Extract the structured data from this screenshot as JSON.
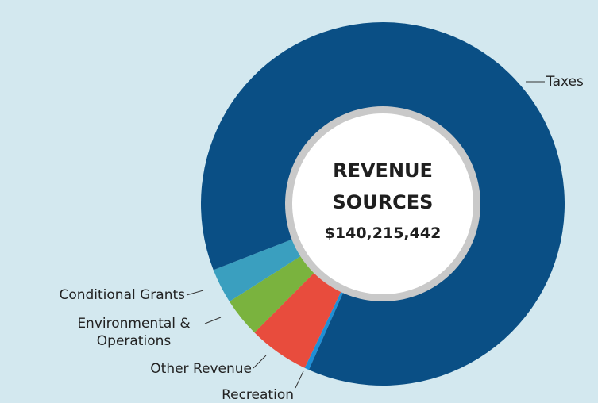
{
  "chart_data": {
    "type": "pie",
    "title": "REVENUE SOURCES",
    "total": "$140,215,442",
    "categories": [
      "Recreation",
      "Other Revenue",
      "Environmental & Operations",
      "Conditional Grants",
      "Taxes"
    ],
    "values": [
      0.4,
      5.4,
      3.5,
      3.1,
      87.6
    ],
    "colors": [
      "#1e8fd6",
      "#e84c3d",
      "#7ab33e",
      "#3a9fbf",
      "#0a4f85"
    ]
  }
}
